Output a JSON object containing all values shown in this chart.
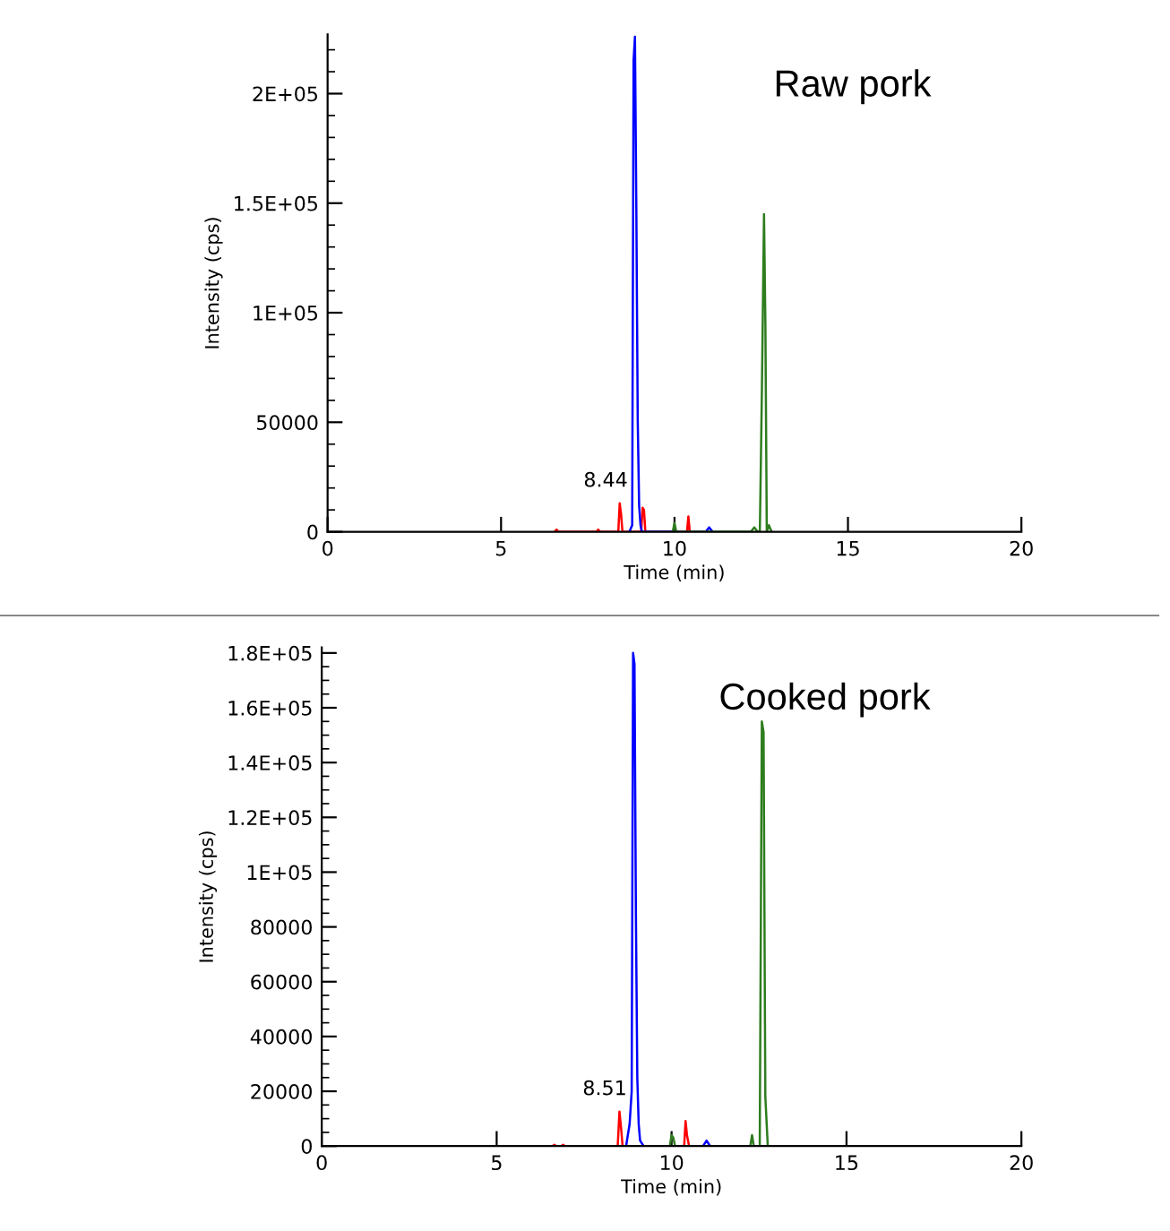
{
  "chart_data": [
    {
      "type": "line",
      "title": "Raw pork",
      "xlabel": "Time (min)",
      "ylabel": "Intensity (cps)",
      "xlim": [
        0,
        20
      ],
      "xticks": [
        0,
        5,
        10,
        15,
        20
      ],
      "ylim": [
        0,
        227000
      ],
      "yticks": [
        0,
        50000,
        {
          "value": 100000,
          "label": "1E+05"
        },
        {
          "value": 150000,
          "label": "1.5E+05"
        },
        {
          "value": 200000,
          "label": "2E+05"
        }
      ],
      "grid": false,
      "legend": false,
      "annotations": [
        {
          "text": "8.44",
          "x": 8.44,
          "y": 13000
        }
      ],
      "series": [
        {
          "color": "#ff0000",
          "x": [
            6.55,
            6.6,
            6.65,
            7.75,
            7.8,
            7.85,
            8.38,
            8.42,
            8.46,
            8.5,
            9.04,
            9.08,
            9.12,
            9.16,
            10.36,
            10.4,
            10.44
          ],
          "values": [
            0,
            1000,
            0,
            0,
            1000,
            0,
            0,
            13000,
            8000,
            0,
            0,
            11000,
            10000,
            0,
            0,
            7000,
            0
          ]
        },
        {
          "color": "#0000ff",
          "x": [
            8.7,
            8.78,
            8.82,
            8.86,
            8.9,
            8.94,
            8.98,
            9.02,
            9.06,
            9.15,
            10.9,
            11.0,
            11.1
          ],
          "values": [
            0,
            3000,
            215000,
            226000,
            147000,
            51000,
            12000,
            3000,
            0,
            0,
            0,
            2000,
            0
          ]
        },
        {
          "color": "#2e7d1e",
          "x": [
            9.95,
            10.0,
            10.05,
            12.2,
            12.3,
            12.4,
            12.46,
            12.52,
            12.58,
            12.62,
            12.66,
            12.72,
            12.8
          ],
          "values": [
            0,
            4000,
            0,
            0,
            2000,
            0,
            0,
            65000,
            145000,
            95000,
            0,
            3000,
            0
          ]
        }
      ]
    },
    {
      "type": "line",
      "title": "Cooked pork",
      "xlabel": "Time (min)",
      "ylabel": "Intensity (cps)",
      "xlim": [
        0,
        20
      ],
      "xticks": [
        0,
        5,
        10,
        15,
        20
      ],
      "ylim": [
        0,
        182000
      ],
      "yticks": [
        0,
        20000,
        40000,
        60000,
        80000,
        {
          "value": 100000,
          "label": "1E+05"
        },
        {
          "value": 120000,
          "label": "1.2E+05"
        },
        {
          "value": 140000,
          "label": "1.4E+05"
        },
        {
          "value": 160000,
          "label": "1.6E+05"
        },
        {
          "value": 180000,
          "label": "1.8E+05"
        }
      ],
      "grid": false,
      "legend": false,
      "annotations": [
        {
          "text": "8.51",
          "x": 8.51,
          "y": 12600
        }
      ],
      "series": [
        {
          "color": "#ff0000",
          "x": [
            6.6,
            6.65,
            6.7,
            6.85,
            6.9,
            6.95,
            8.46,
            8.51,
            8.56,
            8.6,
            10.36,
            10.4,
            10.44,
            10.5
          ],
          "values": [
            0,
            500,
            0,
            0,
            500,
            0,
            0,
            12600,
            6000,
            0,
            0,
            9100,
            4000,
            0
          ]
        },
        {
          "color": "#0000ff",
          "x": [
            8.7,
            8.8,
            8.86,
            8.9,
            8.94,
            8.98,
            9.02,
            9.06,
            9.1,
            9.2,
            10.9,
            11.0,
            11.1
          ],
          "values": [
            0,
            8000,
            20000,
            180000,
            176000,
            85000,
            25000,
            8000,
            2000,
            0,
            0,
            2000,
            0
          ]
        },
        {
          "color": "#2e7d1e",
          "x": [
            9.95,
            10.0,
            10.05,
            10.1,
            12.25,
            12.3,
            12.35,
            12.52,
            12.58,
            12.63,
            12.68,
            12.75
          ],
          "values": [
            0,
            4000,
            3000,
            0,
            0,
            4000,
            0,
            0,
            155000,
            151000,
            18000,
            0
          ]
        }
      ]
    }
  ]
}
